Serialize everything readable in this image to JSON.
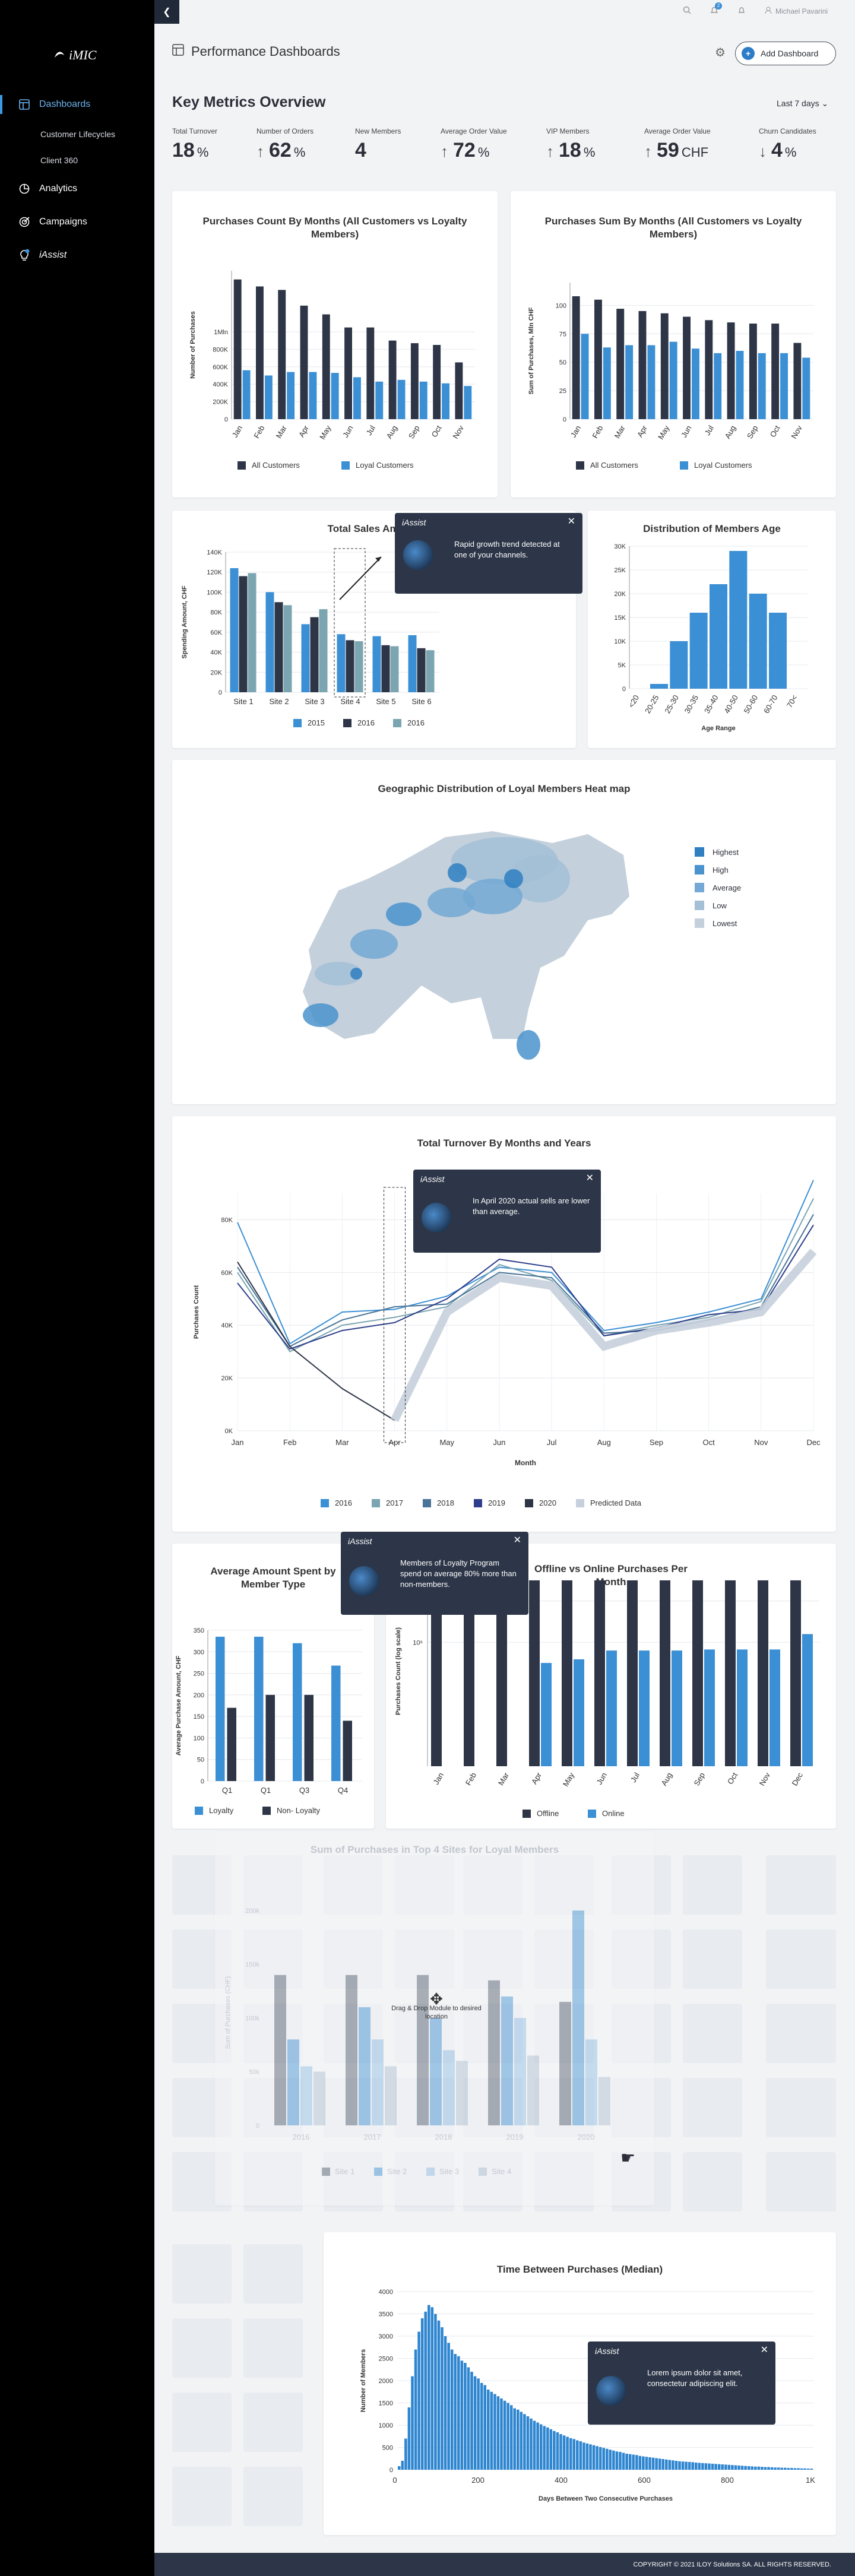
{
  "app": {
    "name": "iMIC",
    "footer": "COPYRIGHT © 2021 ILOY Solutions SA. ALL RIGHTS RESERVED.",
    "user": "Michael Pavarini",
    "notif": "2"
  },
  "nav": {
    "items": [
      {
        "label": "Dashboards",
        "icon": "dashboard-icon"
      },
      {
        "label": "Analytics",
        "icon": "analytics-icon"
      },
      {
        "label": "Campaigns",
        "icon": "campaigns-icon"
      },
      {
        "label": "iAssist",
        "icon": "lightbulb-icon"
      }
    ],
    "sub": [
      "Customer Lifecycles",
      "Client 360"
    ]
  },
  "header": {
    "title": "Performance Dashboards",
    "add": "Add Dashboard"
  },
  "metrics": {
    "title": "Key Metrics Overview",
    "range": "Last 7 days",
    "items": [
      {
        "label": "Total Turnover",
        "value": "18",
        "unit": "%",
        "arrow": ""
      },
      {
        "label": "Number of Orders",
        "value": "62",
        "unit": "%",
        "arrow": "↑"
      },
      {
        "label": "New Members",
        "value": "4",
        "unit": "",
        "arrow": ""
      },
      {
        "label": "Average Order Value",
        "value": "72",
        "unit": "%",
        "arrow": "↑"
      },
      {
        "label": "VIP Members",
        "value": "18",
        "unit": "%",
        "arrow": "↑"
      },
      {
        "label": "Average Order Value",
        "value": "59",
        "unit": "CHF",
        "arrow": "↑"
      },
      {
        "label": "Churn Candidates",
        "value": "4",
        "unit": "%",
        "arrow": "↓"
      }
    ]
  },
  "tips": [
    {
      "name": "iAssist",
      "text": "Rapid growth trend detected at one of your channels."
    },
    {
      "name": "iAssist",
      "text": "In April 2020 actual sells are lower than average."
    },
    {
      "name": "iAssist",
      "text": "Members of Loyalty Program spend on average 80% more than non-members."
    },
    {
      "name": "iAssist",
      "text": "Lorem ipsum dolor sit amet, consectetur adipiscing elit."
    }
  ],
  "drag": {
    "label": "Drag & Drop Module to desired location"
  },
  "heatmap": {
    "title": "Geographic Distribution of Loyal Members Heat map",
    "legend": [
      "Highest",
      "High",
      "Average",
      "Low",
      "Lowest"
    ],
    "colors": [
      "#2f7fc1",
      "#4a93cc",
      "#73a9d4",
      "#a3c0d6",
      "#c4d0dc"
    ]
  },
  "chart_data": [
    {
      "type": "bar",
      "title": "Purchases Count By Months (All Customers vs Loyalty Members)",
      "ylabel": "Number of Purchases",
      "ylim": [
        0,
        1700000
      ],
      "yticks": [
        "0",
        "200K",
        "400K",
        "600K",
        "800K",
        "1Mln"
      ],
      "ytickv": [
        0,
        200000,
        400000,
        600000,
        800000,
        1000000
      ],
      "categories": [
        "Jan",
        "Feb",
        "Mar",
        "Apr",
        "May",
        "Jun",
        "Jul",
        "Aug",
        "Sep",
        "Oct",
        "Nov"
      ],
      "series": [
        {
          "name": "All Customers",
          "color": "#2d3546",
          "values": [
            1600000,
            1520000,
            1480000,
            1300000,
            1200000,
            1050000,
            1050000,
            900000,
            870000,
            850000,
            650000
          ]
        },
        {
          "name": "Loyal Customers",
          "color": "#3b8fd4",
          "values": [
            560000,
            500000,
            540000,
            540000,
            530000,
            480000,
            430000,
            450000,
            430000,
            410000,
            380000
          ]
        }
      ]
    },
    {
      "type": "bar",
      "title": "Purchases Sum By Months (All Customers vs Loyalty Members)",
      "ylabel": "Sum of Purchases, Mln CHF",
      "ylim": [
        0,
        120
      ],
      "yticks": [
        "0",
        "25",
        "50",
        "75",
        "100"
      ],
      "ytickv": [
        0,
        25,
        50,
        75,
        100
      ],
      "categories": [
        "Jan",
        "Feb",
        "Mar",
        "Apr",
        "May",
        "Jun",
        "Jul",
        "Aug",
        "Sep",
        "Oct",
        "Nov"
      ],
      "series": [
        {
          "name": "All Customers",
          "color": "#2d3546",
          "values": [
            108,
            105,
            97,
            95,
            93,
            90,
            87,
            85,
            84,
            84,
            67
          ]
        },
        {
          "name": "Loyal Customers",
          "color": "#3b8fd4",
          "values": [
            75,
            63,
            65,
            65,
            68,
            62,
            58,
            60,
            58,
            58,
            54
          ]
        }
      ]
    },
    {
      "type": "bar",
      "title": "Total Sales Amount",
      "ylabel": "Spending Amount, CHF",
      "ylim": [
        0,
        140000
      ],
      "yticks": [
        "0",
        "20K",
        "40K",
        "60K",
        "80K",
        "100K",
        "120K",
        "140K"
      ],
      "ytickv": [
        0,
        20000,
        40000,
        60000,
        80000,
        100000,
        120000,
        140000
      ],
      "categories": [
        "Site 1",
        "Site 2",
        "Site 3",
        "Site 4",
        "Site 5",
        "Site 6"
      ],
      "series": [
        {
          "name": "2015",
          "color": "#3b8fd4",
          "values": [
            124000,
            100000,
            68000,
            58000,
            56000,
            57000
          ]
        },
        {
          "name": "2016",
          "color": "#2d3546",
          "values": [
            116000,
            90000,
            75000,
            52000,
            47000,
            44000
          ]
        },
        {
          "name": "2016",
          "color": "#7ba5b0",
          "values": [
            119000,
            87000,
            83000,
            51000,
            46000,
            42000
          ]
        }
      ]
    },
    {
      "type": "bar",
      "title": "Distribution of Members Age",
      "xlabel": "Age Range",
      "ylim": [
        0,
        30000
      ],
      "yticks": [
        "0",
        "5K",
        "10K",
        "15K",
        "20K",
        "25K",
        "30K"
      ],
      "ytickv": [
        0,
        5000,
        10000,
        15000,
        20000,
        25000,
        30000
      ],
      "categories": [
        "<20",
        "20-25",
        "25-30",
        "30-35",
        "35-40",
        "40-50",
        "50-60",
        "60-70",
        "70<"
      ],
      "values": [
        0,
        1000,
        10000,
        16000,
        22000,
        29000,
        20000,
        16000,
        0
      ]
    },
    {
      "type": "line",
      "title": "Total Turnover By Months and Years",
      "xlabel": "Month",
      "ylabel": "Purchases Count",
      "ylim": [
        0,
        90000
      ],
      "yticks": [
        "0K",
        "20K",
        "40K",
        "60K",
        "80K"
      ],
      "ytickv": [
        0,
        20000,
        40000,
        60000,
        80000
      ],
      "categories": [
        "Jan",
        "Feb",
        "Mar",
        "Apr",
        "May",
        "Jun",
        "Jul",
        "Aug",
        "Sep",
        "Oct",
        "Nov",
        "Dec"
      ],
      "series": [
        {
          "name": "2016",
          "color": "#3b8fd4",
          "values": [
            79000,
            33000,
            45000,
            46000,
            51000,
            62000,
            60000,
            38000,
            41000,
            45000,
            50000,
            95000
          ]
        },
        {
          "name": "2017",
          "color": "#7ba5b0",
          "values": [
            60000,
            30000,
            40000,
            43000,
            47000,
            63000,
            57000,
            36000,
            40000,
            43000,
            49000,
            88000
          ]
        },
        {
          "name": "2018",
          "color": "#4a7598",
          "values": [
            62000,
            32000,
            42000,
            47000,
            48000,
            60000,
            58000,
            37000,
            38000,
            42000,
            47000,
            82000
          ]
        },
        {
          "name": "2019",
          "color": "#2e3e8a",
          "values": [
            56000,
            31000,
            38000,
            41000,
            50000,
            65000,
            62000,
            36000,
            39000,
            44000,
            46000,
            78000
          ]
        },
        {
          "name": "2020",
          "color": "#2d3546",
          "values": [
            64000,
            32000,
            16000,
            4000,
            null,
            null,
            null,
            null,
            null,
            null,
            null,
            null
          ]
        },
        {
          "name": "Predicted Data",
          "color": "#c6d0dc",
          "values": [
            null,
            null,
            null,
            4000,
            45000,
            58000,
            55000,
            32000,
            38000,
            41000,
            45000,
            68000
          ]
        }
      ]
    },
    {
      "type": "bar",
      "title": "Average Amount Spent by Member Type",
      "ylabel": "Average Purchase Amount, CHF",
      "ylim": [
        0,
        350
      ],
      "yticks": [
        "0",
        "50",
        "100",
        "150",
        "200",
        "250",
        "300",
        "350"
      ],
      "ytickv": [
        0,
        50,
        100,
        150,
        200,
        250,
        300,
        350
      ],
      "categories": [
        "Q1",
        "Q1",
        "Q3",
        "Q4"
      ],
      "series": [
        {
          "name": "Loyalty",
          "color": "#3b8fd4",
          "values": [
            335,
            335,
            320,
            268
          ]
        },
        {
          "name": "Non- Loyalty",
          "color": "#2d3546",
          "values": [
            170,
            200,
            200,
            140
          ]
        }
      ]
    },
    {
      "type": "bar",
      "title": "Offline vs Online Purchases Per Month",
      "ylabel": "Purchases Count (log scale)",
      "categories": [
        "Jan",
        "Feb",
        "Mar",
        "Apr",
        "May",
        "Jun",
        "Jul",
        "Aug",
        "Sep",
        "Oct",
        "Nov",
        "Dec"
      ],
      "yticks": [
        "10⁶",
        "10⁸"
      ],
      "series": [
        {
          "name": "Offline",
          "color": "#2d3546",
          "values": [
            1000000000,
            1000000000,
            1000000000,
            1000000000,
            1000000000,
            1000000000,
            1000000000,
            1000000000,
            1000000000,
            1000000000,
            1000000000,
            1000000000
          ]
        },
        {
          "name": "Online",
          "color": "#3b8fd4",
          "values": [
            0,
            0,
            0,
            100000,
            150000,
            400000,
            400000,
            400000,
            450000,
            450000,
            450000,
            2500000
          ]
        }
      ]
    },
    {
      "type": "bar",
      "title": "Sum of Purchases in Top 4 Sites for Loyal Members",
      "ylabel": "Sum of Purchases (CHF)",
      "categories": [
        "2016",
        "2017",
        "2018",
        "2019",
        "2020"
      ],
      "yticks": [
        "0",
        "50k",
        "100k",
        "150k",
        "200k"
      ],
      "ylim": [
        0,
        210000
      ],
      "ytickv": [
        0,
        50000,
        100000,
        150000,
        200000
      ],
      "series": [
        {
          "name": "Site 1",
          "color": "#6e7582",
          "values": [
            140000,
            140000,
            140000,
            135000,
            115000
          ]
        },
        {
          "name": "Site 2",
          "color": "#5ea2d8",
          "values": [
            80000,
            110000,
            100000,
            120000,
            200000
          ]
        },
        {
          "name": "Site 3",
          "color": "#a0c6e8",
          "values": [
            55000,
            80000,
            70000,
            100000,
            80000
          ]
        },
        {
          "name": "Site 4",
          "color": "#b8c7d6",
          "values": [
            50000,
            55000,
            60000,
            65000,
            45000
          ]
        }
      ]
    },
    {
      "type": "bar",
      "title": "Time Between Purchases (Median)",
      "xlabel": "Days Between Two Consecutive Purchases",
      "ylabel": "Number of Members",
      "ylim": [
        0,
        4000
      ],
      "yticks": [
        "0",
        "500",
        "1000",
        "1500",
        "2000",
        "2500",
        "3000",
        "3500",
        "4000"
      ],
      "ytickv": [
        0,
        500,
        1000,
        1500,
        2000,
        2500,
        3000,
        3500,
        4000
      ],
      "xticks": [
        "0",
        "200",
        "400",
        "600",
        "800",
        "1K"
      ],
      "values": [
        80,
        200,
        700,
        1400,
        2100,
        2700,
        3100,
        3400,
        3550,
        3700,
        3650,
        3500,
        3350,
        3200,
        3000,
        2850,
        2700,
        2600,
        2550,
        2450,
        2400,
        2300,
        2200,
        2100,
        2050,
        1950,
        1900,
        1800,
        1750,
        1700,
        1650,
        1600,
        1550,
        1500,
        1450,
        1380,
        1350,
        1300,
        1250,
        1200,
        1150,
        1100,
        1060,
        1020,
        980,
        950,
        910,
        870,
        840,
        800,
        770,
        740,
        710,
        690,
        660,
        640,
        610,
        590,
        570,
        550,
        530,
        510,
        490,
        470,
        450,
        430,
        410,
        400,
        380,
        360,
        350,
        340,
        330,
        310,
        300,
        290,
        280,
        270,
        260,
        250,
        240,
        230,
        220,
        210,
        200,
        190,
        185,
        180,
        175,
        170,
        160,
        155,
        150,
        145,
        140,
        135,
        130,
        125,
        120,
        115,
        110,
        105,
        100,
        95,
        90,
        85,
        80,
        75,
        70,
        70,
        65,
        60,
        60,
        55,
        50,
        50,
        45,
        45,
        40,
        40,
        35,
        35,
        30,
        30,
        25,
        25
      ]
    }
  ]
}
